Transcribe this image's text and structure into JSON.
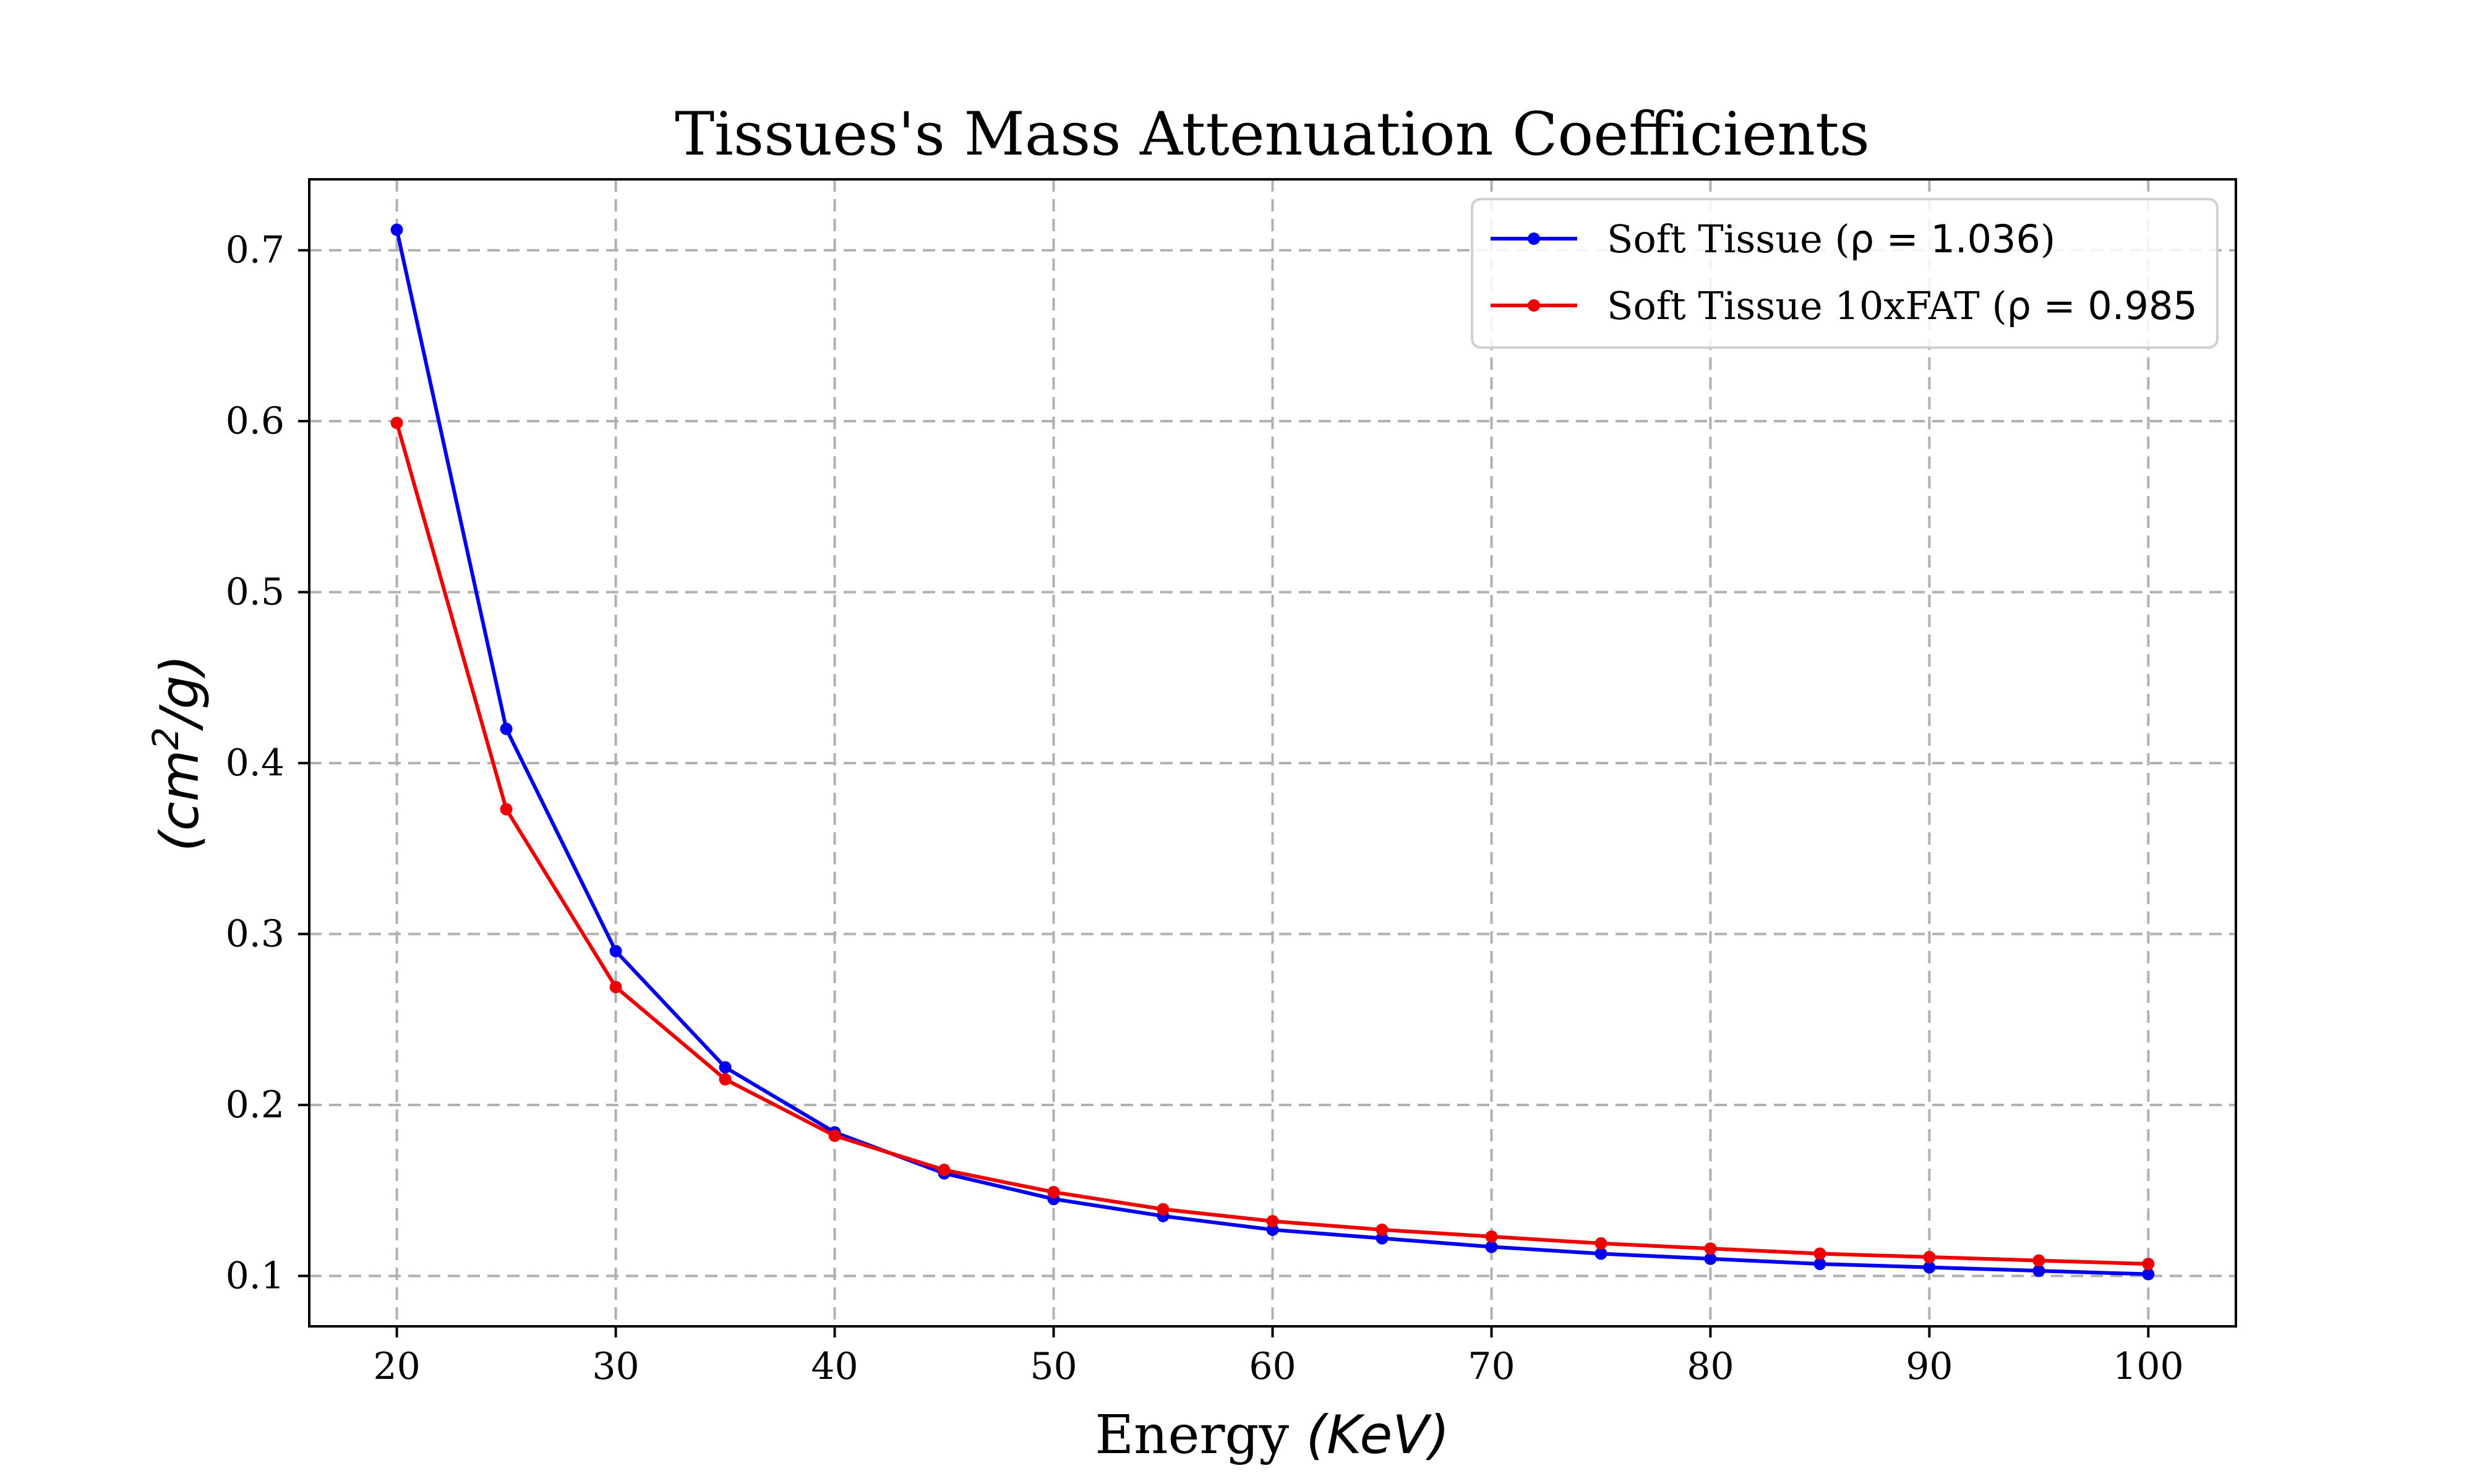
{
  "chart_data": {
    "type": "line",
    "title": "Tissues's Mass Attenuation Coefficients",
    "xlabel": "Energy (KeV)",
    "xlabel_parts": {
      "text": "Energy ",
      "math": "(KeV)"
    },
    "ylabel": "(cm²/g)",
    "ylabel_parts": {
      "open": "(cm",
      "sup": "2",
      "close": "/g)"
    },
    "xlim": [
      16,
      104
    ],
    "ylim": [
      0.0705,
      0.7415
    ],
    "xticks": [
      20,
      30,
      40,
      50,
      60,
      70,
      80,
      90,
      100
    ],
    "yticks": [
      0.1,
      0.2,
      0.3,
      0.4,
      0.5,
      0.6,
      0.7
    ],
    "xtick_labels": [
      "20",
      "30",
      "40",
      "50",
      "60",
      "70",
      "80",
      "90",
      "100"
    ],
    "ytick_labels": [
      "0.1",
      "0.2",
      "0.3",
      "0.4",
      "0.5",
      "0.6",
      "0.7"
    ],
    "grid": true,
    "legend_position": "top-right",
    "x": [
      20,
      25,
      30,
      35,
      40,
      45,
      50,
      55,
      60,
      65,
      70,
      75,
      80,
      85,
      90,
      95,
      100
    ],
    "series": [
      {
        "name": "Soft Tissue (ρ = 1.036)",
        "legend_text": "Soft Tissue (",
        "legend_math": "ρ = 1.036",
        "legend_close": ")",
        "color": "#0000ee",
        "values": [
          0.712,
          0.42,
          0.29,
          0.222,
          0.184,
          0.16,
          0.145,
          0.135,
          0.127,
          0.122,
          0.117,
          0.113,
          0.11,
          0.107,
          0.105,
          0.103,
          0.101
        ]
      },
      {
        "name": "Soft Tissue 10xFAT (ρ = 0.985",
        "legend_text": "Soft Tissue 10xFAT (",
        "legend_math": "ρ = 0.985",
        "legend_close": "",
        "color": "#ee0000",
        "values": [
          0.599,
          0.373,
          0.269,
          0.215,
          0.182,
          0.162,
          0.149,
          0.139,
          0.132,
          0.127,
          0.123,
          0.119,
          0.116,
          0.113,
          0.111,
          0.109,
          0.107
        ]
      }
    ]
  }
}
